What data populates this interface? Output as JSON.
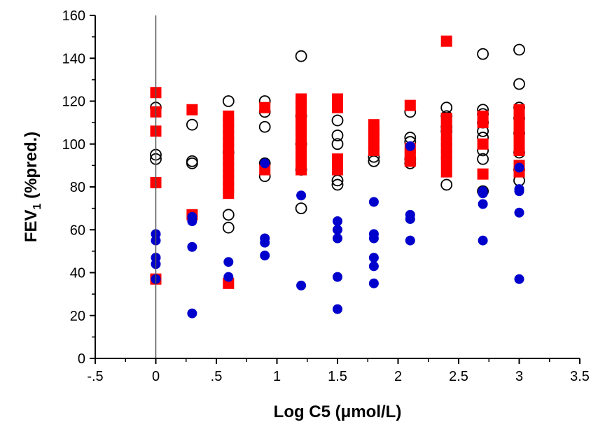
{
  "chart_data": {
    "type": "scatter",
    "xlabel": "Log C5 (μmol/L)",
    "ylabel": "FEV",
    "ylabel_subscript": "1",
    "ylabel_suffix": " (%pred.)",
    "xlim": [
      -0.5,
      3.5
    ],
    "ylim": [
      0,
      160
    ],
    "x_ticks": [
      -0.5,
      0,
      0.5,
      1,
      1.5,
      2,
      2.5,
      3,
      3.5
    ],
    "x_tick_labels": [
      "-.5",
      "0",
      ".5",
      "1",
      "1.5",
      "2",
      "2.5",
      "3",
      "3.5"
    ],
    "y_ticks": [
      0,
      20,
      40,
      60,
      80,
      100,
      120,
      140,
      160
    ],
    "y_tick_labels": [
      "0",
      "20",
      "40",
      "60",
      "80",
      "100",
      "120",
      "140",
      "160"
    ],
    "vertical_reference_line_x": 0,
    "grid": false,
    "series": [
      {
        "marker": "open-circle",
        "color": "#000000",
        "points": [
          [
            0,
            117
          ],
          [
            0,
            95
          ],
          [
            0,
            93
          ],
          [
            0.3,
            109
          ],
          [
            0.3,
            92
          ],
          [
            0.3,
            91
          ],
          [
            0.6,
            120
          ],
          [
            0.6,
            96
          ],
          [
            0.6,
            67
          ],
          [
            0.6,
            61
          ],
          [
            0.9,
            120
          ],
          [
            0.9,
            115
          ],
          [
            0.9,
            108
          ],
          [
            0.9,
            91
          ],
          [
            0.9,
            85
          ],
          [
            1.2,
            141
          ],
          [
            1.2,
            113
          ],
          [
            1.2,
            100
          ],
          [
            1.2,
            88
          ],
          [
            1.2,
            70
          ],
          [
            1.5,
            111
          ],
          [
            1.5,
            104
          ],
          [
            1.5,
            100
          ],
          [
            1.5,
            83
          ],
          [
            1.5,
            81
          ],
          [
            1.8,
            94
          ],
          [
            1.8,
            92
          ],
          [
            2.1,
            115
          ],
          [
            2.1,
            103
          ],
          [
            2.1,
            101
          ],
          [
            2.1,
            93
          ],
          [
            2.1,
            91
          ],
          [
            2.4,
            117
          ],
          [
            2.4,
            113
          ],
          [
            2.4,
            108
          ],
          [
            2.4,
            106
          ],
          [
            2.4,
            81
          ],
          [
            2.7,
            142
          ],
          [
            2.7,
            116
          ],
          [
            2.7,
            114
          ],
          [
            2.7,
            110
          ],
          [
            2.7,
            106
          ],
          [
            2.7,
            103
          ],
          [
            2.7,
            97
          ],
          [
            2.7,
            93
          ],
          [
            2.7,
            78
          ],
          [
            3,
            144
          ],
          [
            3,
            128
          ],
          [
            3,
            117
          ],
          [
            3,
            112
          ],
          [
            3,
            105
          ],
          [
            3,
            96
          ],
          [
            3,
            88
          ],
          [
            3,
            83
          ]
        ]
      },
      {
        "marker": "filled-square",
        "color": "#ff0000",
        "points": [
          [
            0,
            124
          ],
          [
            0,
            115
          ],
          [
            0,
            106
          ],
          [
            0,
            82
          ],
          [
            0,
            37
          ],
          [
            0.3,
            116
          ],
          [
            0.3,
            67
          ],
          [
            0.6,
            113
          ],
          [
            0.6,
            110
          ],
          [
            0.6,
            107
          ],
          [
            0.6,
            104
          ],
          [
            0.6,
            101
          ],
          [
            0.6,
            98
          ],
          [
            0.6,
            95
          ],
          [
            0.6,
            92
          ],
          [
            0.6,
            89
          ],
          [
            0.6,
            86
          ],
          [
            0.6,
            83
          ],
          [
            0.6,
            80
          ],
          [
            0.6,
            77
          ],
          [
            0.6,
            35
          ],
          [
            0.9,
            117
          ],
          [
            0.9,
            88
          ],
          [
            1.2,
            121
          ],
          [
            1.2,
            118
          ],
          [
            1.2,
            115
          ],
          [
            1.2,
            112
          ],
          [
            1.2,
            109
          ],
          [
            1.2,
            106
          ],
          [
            1.2,
            103
          ],
          [
            1.2,
            100
          ],
          [
            1.2,
            97
          ],
          [
            1.2,
            94
          ],
          [
            1.2,
            91
          ],
          [
            1.2,
            88
          ],
          [
            1.5,
            121
          ],
          [
            1.5,
            117
          ],
          [
            1.5,
            93
          ],
          [
            1.5,
            88
          ],
          [
            1.8,
            109
          ],
          [
            1.8,
            106
          ],
          [
            1.8,
            103
          ],
          [
            1.8,
            100
          ],
          [
            1.8,
            97
          ],
          [
            2.1,
            118
          ],
          [
            2.1,
            98
          ],
          [
            2.1,
            95
          ],
          [
            2.1,
            92
          ],
          [
            2.4,
            148
          ],
          [
            2.4,
            112
          ],
          [
            2.4,
            109
          ],
          [
            2.4,
            104
          ],
          [
            2.4,
            101
          ],
          [
            2.4,
            98
          ],
          [
            2.4,
            95
          ],
          [
            2.4,
            92
          ],
          [
            2.4,
            87
          ],
          [
            2.7,
            113
          ],
          [
            2.7,
            110
          ],
          [
            2.7,
            100
          ],
          [
            2.7,
            86
          ],
          [
            3,
            116
          ],
          [
            3,
            112
          ],
          [
            3,
            109
          ],
          [
            3,
            106
          ],
          [
            3,
            103
          ],
          [
            3,
            100
          ],
          [
            3,
            97
          ],
          [
            3,
            90
          ],
          [
            3,
            87
          ]
        ]
      },
      {
        "marker": "filled-circle",
        "color": "#0000cc",
        "points": [
          [
            0,
            58
          ],
          [
            0,
            55
          ],
          [
            0,
            47
          ],
          [
            0,
            44
          ],
          [
            0,
            37
          ],
          [
            0.3,
            66
          ],
          [
            0.3,
            64
          ],
          [
            0.3,
            52
          ],
          [
            0.3,
            21
          ],
          [
            0.6,
            45
          ],
          [
            0.6,
            38
          ],
          [
            0.9,
            91
          ],
          [
            0.9,
            56
          ],
          [
            0.9,
            54
          ],
          [
            0.9,
            48
          ],
          [
            1.2,
            76
          ],
          [
            1.2,
            34
          ],
          [
            1.5,
            64
          ],
          [
            1.5,
            60
          ],
          [
            1.5,
            56
          ],
          [
            1.5,
            38
          ],
          [
            1.5,
            23
          ],
          [
            1.8,
            73
          ],
          [
            1.8,
            58
          ],
          [
            1.8,
            56
          ],
          [
            1.8,
            47
          ],
          [
            1.8,
            43
          ],
          [
            1.8,
            35
          ],
          [
            2.1,
            99
          ],
          [
            2.1,
            67
          ],
          [
            2.1,
            65
          ],
          [
            2.1,
            55
          ],
          [
            2.7,
            78
          ],
          [
            2.7,
            77
          ],
          [
            2.7,
            72
          ],
          [
            2.7,
            55
          ],
          [
            3,
            89
          ],
          [
            3,
            79
          ],
          [
            3,
            78
          ],
          [
            3,
            68
          ],
          [
            3,
            37
          ]
        ]
      }
    ]
  }
}
